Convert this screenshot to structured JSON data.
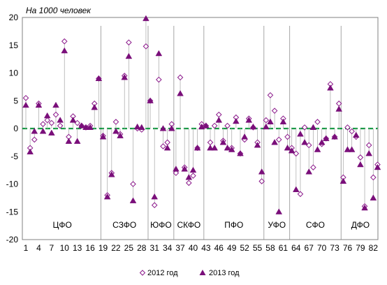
{
  "chart_data": {
    "type": "scatter",
    "unit_label": "На 1000 человек",
    "ylim": [
      -20,
      20
    ],
    "yticks": [
      20,
      15,
      10,
      5,
      0,
      -5,
      -10,
      -15,
      -20
    ],
    "xlim": [
      1,
      83
    ],
    "xtick_labels": [
      1,
      4,
      7,
      10,
      13,
      16,
      19,
      22,
      25,
      28,
      31,
      34,
      37,
      40,
      43,
      46,
      49,
      52,
      55,
      58,
      61,
      64,
      67,
      70,
      73,
      76,
      79,
      82
    ],
    "zero_line": true,
    "zero_line_color": "#1a9a46",
    "divider_color": "#a6a6a6",
    "region_groups": [
      {
        "label": "ЦФО",
        "start": 1,
        "end": 18
      },
      {
        "label": "СЗФО",
        "start": 19,
        "end": 29
      },
      {
        "label": "ЮФО",
        "start": 30,
        "end": 35
      },
      {
        "label": "СКФО",
        "start": 36,
        "end": 42
      },
      {
        "label": "ПФО",
        "start": 43,
        "end": 56
      },
      {
        "label": "УФО",
        "start": 57,
        "end": 62
      },
      {
        "label": "СФО",
        "start": 63,
        "end": 74
      },
      {
        "label": "ДФО",
        "start": 75,
        "end": 83
      }
    ],
    "series": [
      {
        "name": "2012 год",
        "marker": "diamond-open",
        "color": "#8b1a8b",
        "values": [
          5.5,
          -3.5,
          -2,
          4.5,
          0.8,
          1.5,
          1,
          2.5,
          0.5,
          15.7,
          -1.5,
          2.2,
          1,
          0.5,
          0.2,
          0.5,
          4.5,
          9,
          -1.3,
          -12,
          -8,
          1.2,
          -1,
          9.5,
          15.5,
          -10,
          0,
          -0.2,
          14.8,
          5,
          -13.8,
          8.8,
          -3.2,
          -2.5,
          0.8,
          -8,
          9.2,
          -7,
          -9.8,
          -8.5,
          -3.5,
          0.8,
          0.5,
          -2.5,
          0.5,
          2.5,
          -2.2,
          0.5,
          -3.5,
          2,
          -4.5,
          -2,
          1.8,
          0.2,
          -2.5,
          -9.5,
          1.5,
          6,
          3.2,
          -2,
          1.8,
          -1.5,
          -3.5,
          -4.5,
          -11.8,
          0.2,
          -3,
          -7,
          1.2,
          -2.8,
          -1.8,
          8,
          -1.5,
          4.5,
          -8.8,
          0.2,
          -0.5,
          -1.5,
          -5.2,
          -14,
          -3,
          -8.8,
          -6.5
        ]
      },
      {
        "name": "2013 год",
        "marker": "triangle-filled",
        "color": "#7a0f7a",
        "values": [
          4.2,
          -4.2,
          -0.5,
          4.2,
          -0.5,
          2.3,
          -0.8,
          4.2,
          1.5,
          14,
          -2.3,
          1.5,
          -2.3,
          0.5,
          0.2,
          0.2,
          3.8,
          9,
          -1.5,
          -12.3,
          -8.3,
          -0.5,
          -1.3,
          9.2,
          13,
          -13,
          0.3,
          0.2,
          19.8,
          5,
          -12.3,
          13.5,
          0,
          -3.5,
          0,
          -7.3,
          6.3,
          -7.3,
          -8.8,
          -7.5,
          -3.5,
          0.3,
          0.5,
          -3.5,
          -3.5,
          1.5,
          -2.5,
          -3.5,
          -3.8,
          1.3,
          -4.5,
          -1.5,
          1.5,
          0.3,
          -3,
          -7.8,
          0.3,
          1.2,
          -2.5,
          -15,
          1.2,
          -3.5,
          -4,
          -11,
          -1,
          -2.5,
          -7.8,
          0.2,
          -3.8,
          -2.5,
          -1.8,
          7.3,
          -1.5,
          3.5,
          -9.5,
          -3.8,
          -3.8,
          -1.2,
          -6.5,
          -14.3,
          -4.5,
          -12.5,
          -7
        ]
      }
    ],
    "legend": {
      "position": "bottom-center",
      "items": [
        "2012 год",
        "2013 год"
      ]
    }
  }
}
